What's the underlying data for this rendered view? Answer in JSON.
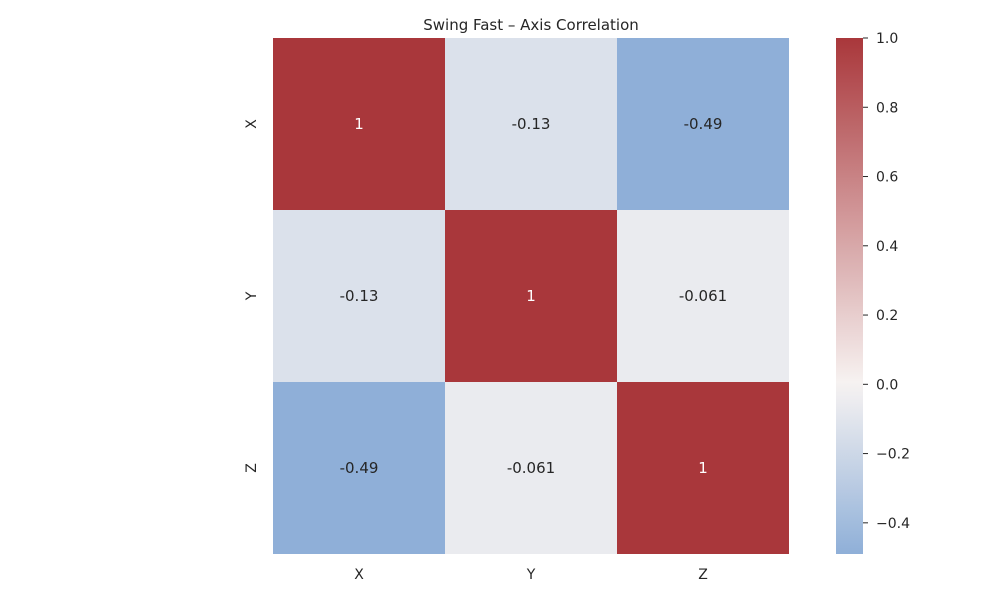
{
  "chart_data": {
    "type": "heatmap",
    "title": "Swing Fast – Axis Correlation",
    "xlabel": "",
    "ylabel": "",
    "x_categories": [
      "X",
      "Y",
      "Z"
    ],
    "y_categories": [
      "X",
      "Y",
      "Z"
    ],
    "values": [
      [
        1,
        -0.13,
        -0.49
      ],
      [
        -0.13,
        1,
        -0.061
      ],
      [
        -0.49,
        -0.061,
        1
      ]
    ],
    "annotations": [
      [
        "1",
        "-0.13",
        "-0.49"
      ],
      [
        "-0.13",
        "1",
        "-0.061"
      ],
      [
        "-0.49",
        "-0.061",
        "1"
      ]
    ],
    "colorbar": {
      "range": [
        -0.49,
        1.0
      ],
      "ticks": [
        -0.4,
        -0.2,
        0.0,
        0.2,
        0.4,
        0.6,
        0.8,
        1.0
      ],
      "tick_labels": [
        "−0.4",
        "−0.2",
        "0.0",
        "0.2",
        "0.4",
        "0.6",
        "0.8",
        "1.0"
      ],
      "colormap": "vlag",
      "colors": {
        "low": "#2369bd",
        "center": "#f7f3f2",
        "high": "#a9373b"
      }
    }
  }
}
